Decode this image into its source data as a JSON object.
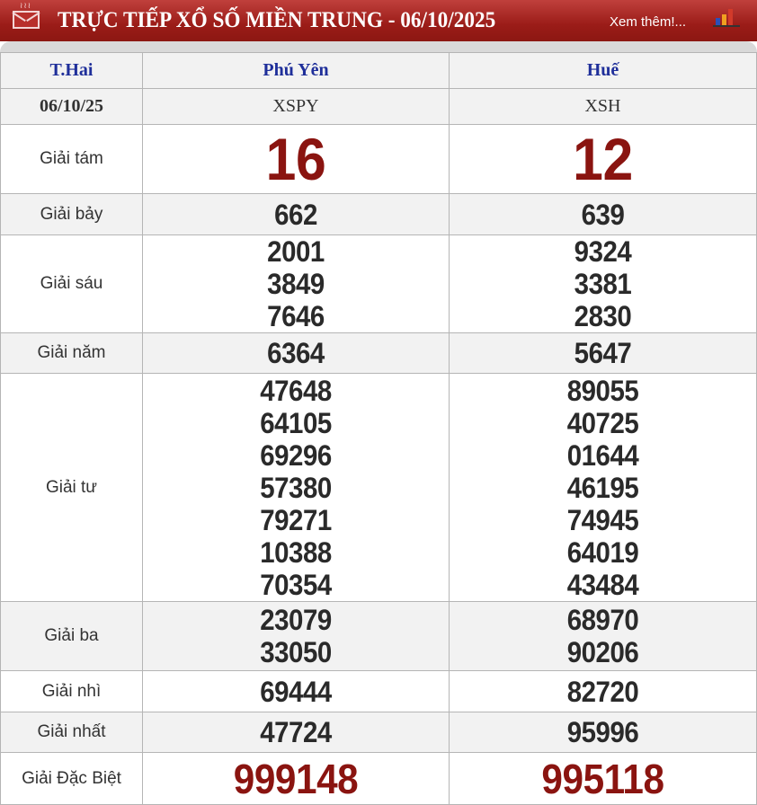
{
  "header": {
    "title": "TRỰC TIẾP XỔ SỐ MIỀN TRUNG - 06/10/2025",
    "more_link": "Xem thêm!...",
    "icons": [
      "mail-icon",
      "bar-chart-icon"
    ],
    "color": "#9b1c18"
  },
  "table": {
    "day": "T.Hai",
    "date": "06/10/25",
    "provinces": [
      {
        "name": "Phú Yên",
        "code": "XSPY"
      },
      {
        "name": "Huế",
        "code": "XSH"
      }
    ],
    "prizes": [
      {
        "label": "Giải tám",
        "values": [
          [
            "16"
          ],
          [
            "12"
          ]
        ]
      },
      {
        "label": "Giải bảy",
        "values": [
          [
            "662"
          ],
          [
            "639"
          ]
        ]
      },
      {
        "label": "Giải sáu",
        "values": [
          [
            "2001",
            "3849",
            "7646"
          ],
          [
            "9324",
            "3381",
            "2830"
          ]
        ]
      },
      {
        "label": "Giải năm",
        "values": [
          [
            "6364"
          ],
          [
            "5647"
          ]
        ]
      },
      {
        "label": "Giải tư",
        "values": [
          [
            "47648",
            "64105",
            "69296",
            "57380",
            "79271",
            "10388",
            "70354"
          ],
          [
            "89055",
            "40725",
            "01644",
            "46195",
            "74945",
            "64019",
            "43484"
          ]
        ]
      },
      {
        "label": "Giải ba",
        "values": [
          [
            "23079",
            "33050"
          ],
          [
            "68970",
            "90206"
          ]
        ]
      },
      {
        "label": "Giải nhì",
        "values": [
          [
            "69444"
          ],
          [
            "82720"
          ]
        ]
      },
      {
        "label": "Giải nhất",
        "values": [
          [
            "47724"
          ],
          [
            "95996"
          ]
        ]
      },
      {
        "label": "Giải Đặc Biệt",
        "values": [
          [
            "999148"
          ],
          [
            "995118"
          ]
        ]
      }
    ],
    "accent_color": "#8a1410"
  }
}
